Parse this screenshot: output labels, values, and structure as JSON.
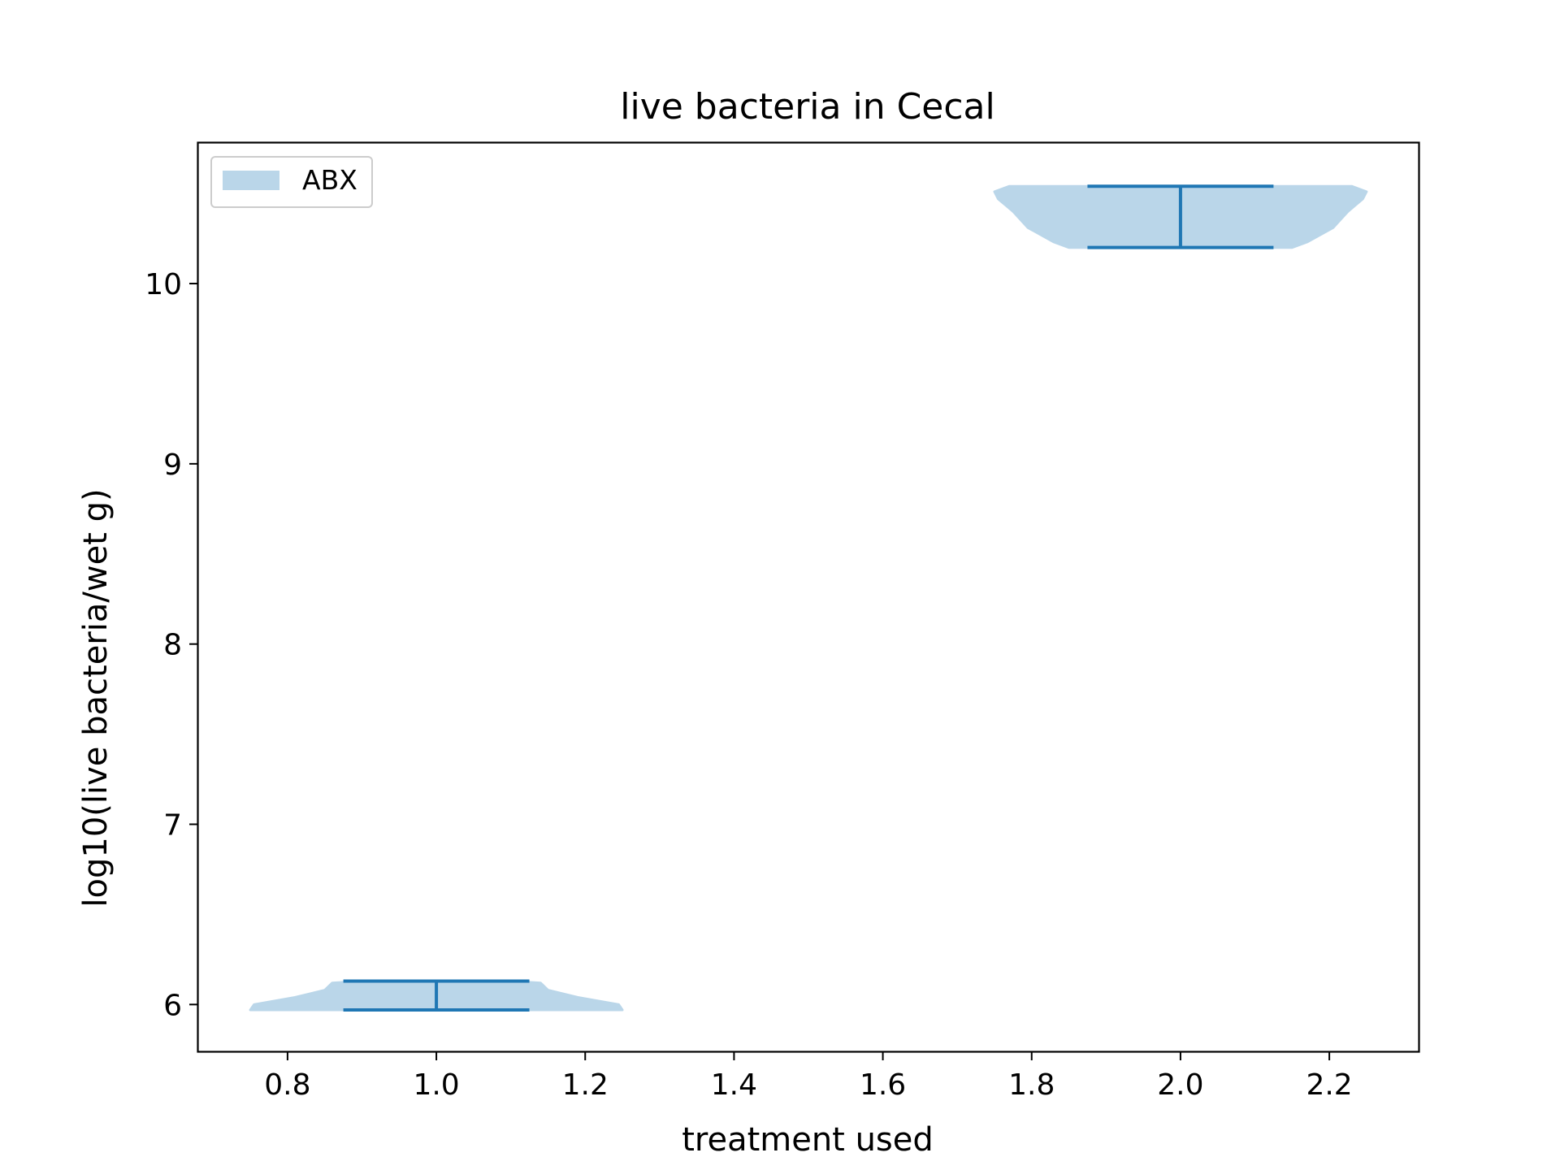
{
  "chart_data": {
    "type": "violin",
    "title": "live bacteria in Cecal",
    "xlabel": "treatment used",
    "ylabel": "log10(live bacteria/wet g)",
    "xlim": [
      0.68,
      2.32
    ],
    "ylim": [
      5.74,
      10.78
    ],
    "xticks": [
      0.8,
      1.0,
      1.2,
      1.4,
      1.6,
      1.8,
      2.0,
      2.2
    ],
    "xtick_labels": [
      "0.8",
      "1.0",
      "1.2",
      "1.4",
      "1.6",
      "1.8",
      "2.0",
      "2.2"
    ],
    "yticks": [
      6,
      7,
      8,
      9,
      10
    ],
    "ytick_labels": [
      "6",
      "7",
      "8",
      "9",
      "10"
    ],
    "grid": false,
    "legend": {
      "position": "upper left",
      "entries": [
        "ABX"
      ]
    },
    "colors": {
      "body": "#bad6e9",
      "line": "#1f77b4"
    },
    "series": [
      {
        "name": "ABX",
        "violins": [
          {
            "position": 1.0,
            "min": 5.97,
            "max": 6.13,
            "profile": [
              {
                "y": 5.97,
                "halfwidth": 0.25
              },
              {
                "y": 6.0,
                "halfwidth": 0.245
              },
              {
                "y": 6.04,
                "halfwidth": 0.19
              },
              {
                "y": 6.08,
                "halfwidth": 0.15
              },
              {
                "y": 6.12,
                "halfwidth": 0.14
              },
              {
                "y": 6.13,
                "halfwidth": 0.1
              }
            ]
          },
          {
            "position": 2.0,
            "min": 10.2,
            "max": 10.54,
            "profile": [
              {
                "y": 10.2,
                "halfwidth": 0.15
              },
              {
                "y": 10.23,
                "halfwidth": 0.17
              },
              {
                "y": 10.31,
                "halfwidth": 0.205
              },
              {
                "y": 10.4,
                "halfwidth": 0.225
              },
              {
                "y": 10.47,
                "halfwidth": 0.245
              },
              {
                "y": 10.51,
                "halfwidth": 0.25
              },
              {
                "y": 10.54,
                "halfwidth": 0.23
              }
            ]
          }
        ]
      }
    ]
  }
}
